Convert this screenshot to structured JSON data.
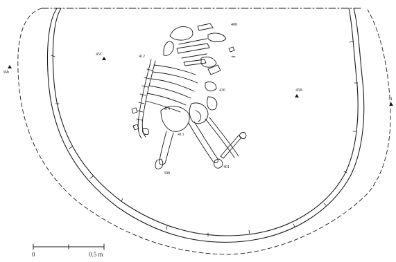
{
  "colors": {
    "ink": "#1a1a1a",
    "background": "#ffffff"
  },
  "labels": {
    "top_right": "408",
    "left_upper": "45C",
    "upper_middle": "412",
    "mid_right_a": "436",
    "mid_left": "414",
    "right_field": "45B",
    "lower_center": "413",
    "bottom_left": "398",
    "bottom_right": "401",
    "edge_left": "36b",
    "edge_right": "31"
  },
  "scale_bar": {
    "start_label": "0",
    "end_label": "0.5 m"
  }
}
